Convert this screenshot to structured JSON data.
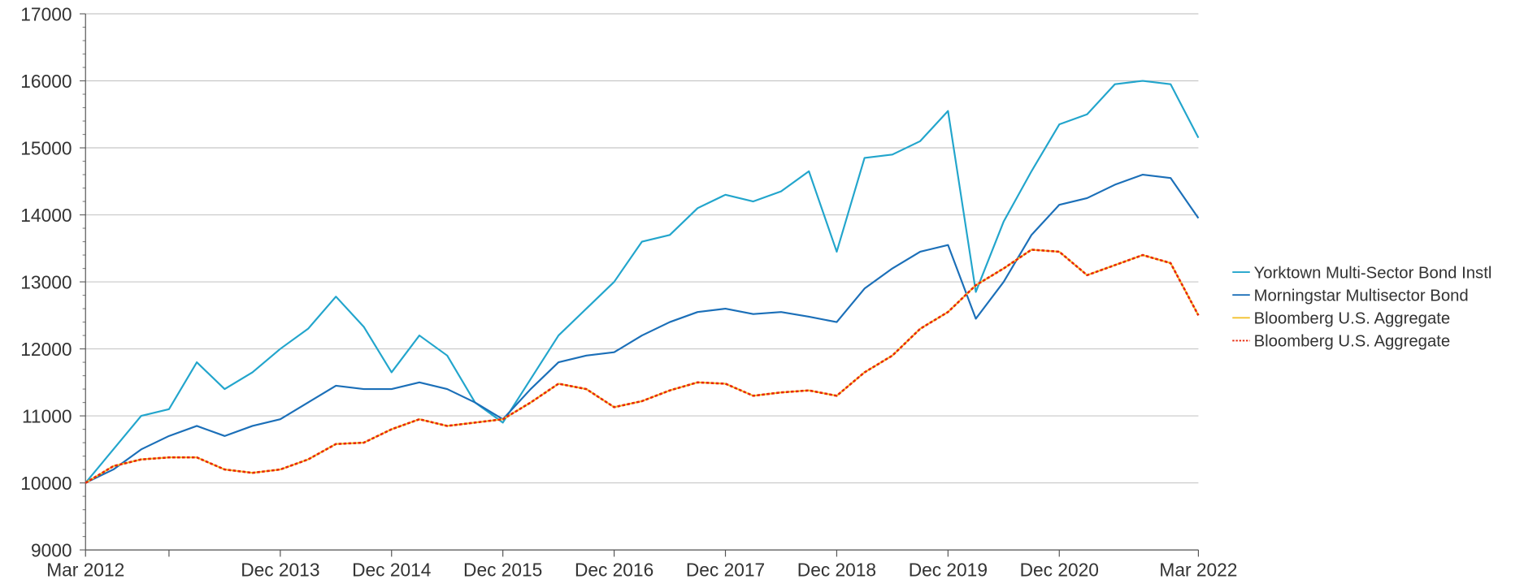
{
  "chart_data": {
    "type": "line",
    "x": [
      "Mar 2012",
      "Jun 2012",
      "Sep 2012",
      "Dec 2012",
      "Mar 2013",
      "Jun 2013",
      "Sep 2013",
      "Dec 2013",
      "Mar 2014",
      "Jun 2014",
      "Sep 2014",
      "Dec 2014",
      "Mar 2015",
      "Jun 2015",
      "Sep 2015",
      "Dec 2015",
      "Mar 2016",
      "Jun 2016",
      "Sep 2016",
      "Dec 2016",
      "Mar 2017",
      "Jun 2017",
      "Sep 2017",
      "Dec 2017",
      "Mar 2018",
      "Jun 2018",
      "Sep 2018",
      "Dec 2018",
      "Mar 2019",
      "Jun 2019",
      "Sep 2019",
      "Dec 2019",
      "Mar 2020",
      "Jun 2020",
      "Sep 2020",
      "Dec 2020",
      "Mar 2021",
      "Jun 2021",
      "Sep 2021",
      "Dec 2021",
      "Mar 2022"
    ],
    "series": [
      {
        "name": "Yorktown Multi-Sector Bond Instl",
        "color": "#22a5cc",
        "style": "solid",
        "values": [
          10000,
          10500,
          11000,
          11100,
          11800,
          11400,
          11650,
          12000,
          12300,
          12780,
          12330,
          11650,
          12200,
          11900,
          11200,
          10900,
          11550,
          12200,
          12600,
          13000,
          13600,
          13700,
          14100,
          14300,
          14200,
          14350,
          14650,
          13450,
          14850,
          14900,
          15100,
          15550,
          12850,
          13900,
          14650,
          15350,
          15500,
          15950,
          16000,
          15950,
          15150
        ]
      },
      {
        "name": "Morningstar Multisector Bond",
        "color": "#1b6fb8",
        "style": "solid",
        "values": [
          10000,
          10200,
          10500,
          10700,
          10850,
          10700,
          10850,
          10950,
          11200,
          11450,
          11400,
          11400,
          11500,
          11400,
          11200,
          10950,
          11400,
          11800,
          11900,
          11950,
          12200,
          12400,
          12550,
          12600,
          12520,
          12550,
          12480,
          12400,
          12900,
          13200,
          13450,
          13550,
          12450,
          13000,
          13700,
          14150,
          14250,
          14450,
          14600,
          14550,
          13950
        ]
      },
      {
        "name": "Bloomberg U.S. Aggregate",
        "color": "#f2c12e",
        "style": "solid",
        "values": [
          10000,
          10250,
          10350,
          10380,
          10380,
          10200,
          10150,
          10200,
          10350,
          10580,
          10600,
          10800,
          10950,
          10850,
          10900,
          10950,
          11200,
          11480,
          11400,
          11130,
          11220,
          11380,
          11500,
          11480,
          11300,
          11350,
          11380,
          11300,
          11650,
          11900,
          12300,
          12550,
          12950,
          13200,
          13480,
          13450,
          13100,
          13250,
          13400,
          13280,
          12500
        ]
      },
      {
        "name": "Bloomberg U.S. Aggregate",
        "color": "#e8280a",
        "style": "dotted",
        "values": [
          10000,
          10250,
          10350,
          10380,
          10380,
          10200,
          10150,
          10200,
          10350,
          10580,
          10600,
          10800,
          10950,
          10850,
          10900,
          10950,
          11200,
          11480,
          11400,
          11130,
          11220,
          11380,
          11500,
          11480,
          11300,
          11350,
          11380,
          11300,
          11650,
          11900,
          12300,
          12550,
          12950,
          13200,
          13480,
          13450,
          13100,
          13250,
          13400,
          13280,
          12500
        ]
      }
    ],
    "xticks": [
      "Mar 2012",
      {
        "value": "Dec 2012",
        "label": null
      },
      "Dec 2013",
      "Dec 2014",
      "Dec 2015",
      "Dec 2016",
      "Dec 2017",
      "Dec 2018",
      "Dec 2019",
      "Dec 2020",
      "Mar 2022"
    ],
    "ylim": [
      9000,
      17000
    ],
    "yticks": [
      9000,
      10000,
      11000,
      12000,
      13000,
      14000,
      15000,
      16000,
      17000
    ],
    "grid": true,
    "legend": "right"
  }
}
